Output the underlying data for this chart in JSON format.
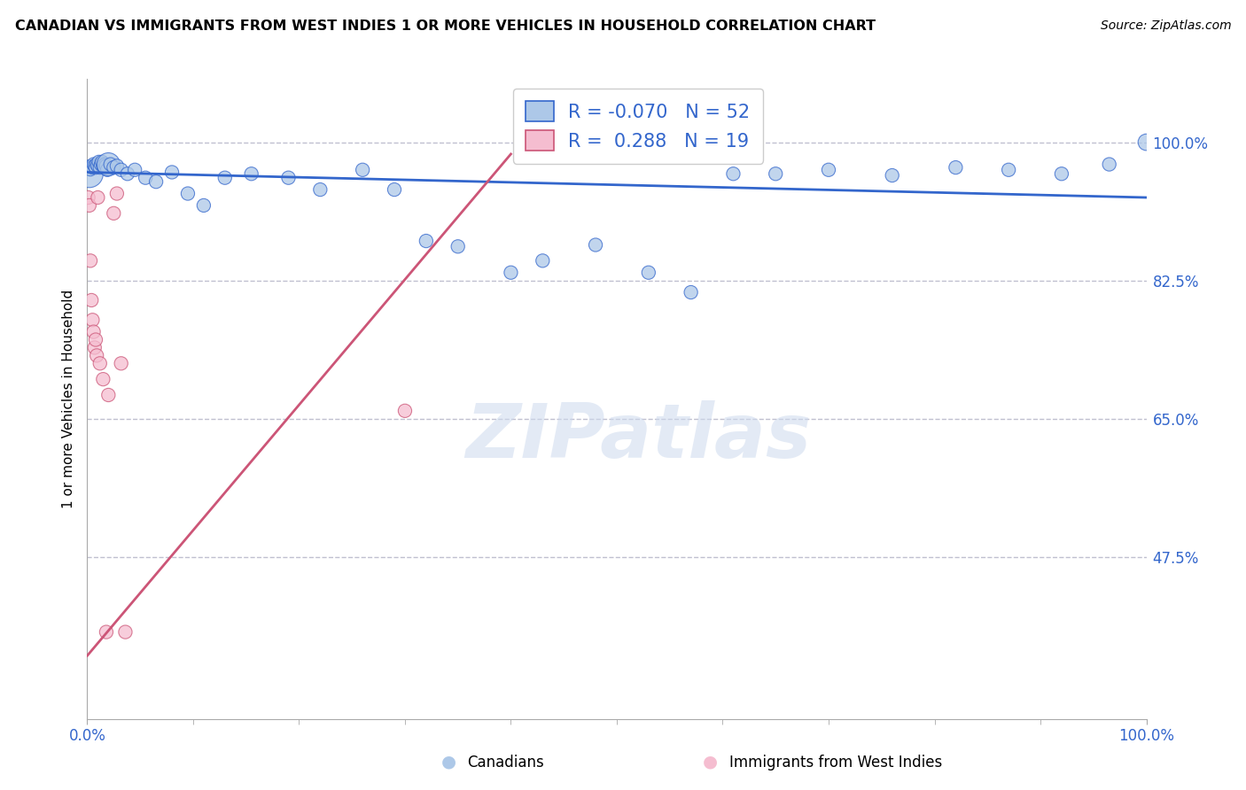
{
  "title": "CANADIAN VS IMMIGRANTS FROM WEST INDIES 1 OR MORE VEHICLES IN HOUSEHOLD CORRELATION CHART",
  "source": "Source: ZipAtlas.com",
  "ylabel": "1 or more Vehicles in Household",
  "blue_R": -0.07,
  "blue_N": 52,
  "pink_R": 0.288,
  "pink_N": 19,
  "blue_color": "#adc8e8",
  "pink_color": "#f5bdd0",
  "blue_line_color": "#3366cc",
  "pink_line_color": "#cc5577",
  "background_color": "#ffffff",
  "grid_color": "#c0c0d0",
  "xmin": 0.0,
  "xmax": 1.0,
  "ymin": 0.27,
  "ymax": 1.08,
  "yticks": [
    0.475,
    0.65,
    0.825,
    1.0
  ],
  "ytick_labels": [
    "47.5%",
    "65.0%",
    "82.5%",
    "100.0%"
  ],
  "blue_scatter_x": [
    0.002,
    0.003,
    0.004,
    0.005,
    0.006,
    0.007,
    0.008,
    0.009,
    0.01,
    0.011,
    0.012,
    0.013,
    0.014,
    0.015,
    0.016,
    0.017,
    0.018,
    0.019,
    0.02,
    0.022,
    0.025,
    0.028,
    0.032,
    0.038,
    0.045,
    0.055,
    0.065,
    0.08,
    0.095,
    0.11,
    0.13,
    0.155,
    0.19,
    0.22,
    0.26,
    0.29,
    0.32,
    0.35,
    0.4,
    0.43,
    0.48,
    0.53,
    0.57,
    0.61,
    0.65,
    0.7,
    0.76,
    0.82,
    0.87,
    0.92,
    0.965,
    1.0
  ],
  "blue_scatter_y": [
    0.96,
    0.965,
    0.97,
    0.968,
    0.972,
    0.97,
    0.968,
    0.972,
    0.97,
    0.975,
    0.968,
    0.972,
    0.975,
    0.97,
    0.968,
    0.972,
    0.97,
    0.965,
    0.972,
    0.972,
    0.968,
    0.97,
    0.965,
    0.96,
    0.965,
    0.955,
    0.95,
    0.962,
    0.935,
    0.92,
    0.955,
    0.96,
    0.955,
    0.94,
    0.965,
    0.94,
    0.875,
    0.868,
    0.835,
    0.85,
    0.87,
    0.835,
    0.81,
    0.96,
    0.96,
    0.965,
    0.958,
    0.968,
    0.965,
    0.96,
    0.972,
    1.0
  ],
  "blue_scatter_size": [
    500,
    100,
    100,
    120,
    120,
    120,
    120,
    120,
    120,
    120,
    120,
    120,
    120,
    120,
    120,
    120,
    120,
    120,
    350,
    120,
    120,
    120,
    120,
    120,
    120,
    120,
    120,
    120,
    120,
    120,
    120,
    120,
    120,
    120,
    120,
    120,
    120,
    120,
    120,
    120,
    120,
    120,
    120,
    120,
    120,
    120,
    120,
    120,
    120,
    120,
    120,
    180
  ],
  "pink_scatter_x": [
    0.001,
    0.002,
    0.003,
    0.004,
    0.005,
    0.006,
    0.007,
    0.008,
    0.009,
    0.01,
    0.012,
    0.015,
    0.018,
    0.02,
    0.025,
    0.028,
    0.032,
    0.036,
    0.3
  ],
  "pink_scatter_y": [
    0.93,
    0.92,
    0.85,
    0.8,
    0.775,
    0.76,
    0.74,
    0.75,
    0.73,
    0.93,
    0.72,
    0.7,
    0.38,
    0.68,
    0.91,
    0.935,
    0.72,
    0.38,
    0.66
  ],
  "pink_scatter_size": [
    120,
    120,
    120,
    120,
    120,
    120,
    120,
    120,
    120,
    120,
    120,
    120,
    120,
    120,
    120,
    120,
    120,
    120,
    120
  ],
  "blue_line_x0": 0.0,
  "blue_line_x1": 1.0,
  "blue_line_y0": 0.962,
  "blue_line_y1": 0.93,
  "pink_line_x0": 0.0,
  "pink_line_x1": 0.4,
  "pink_line_y0": 0.35,
  "pink_line_y1": 0.985
}
